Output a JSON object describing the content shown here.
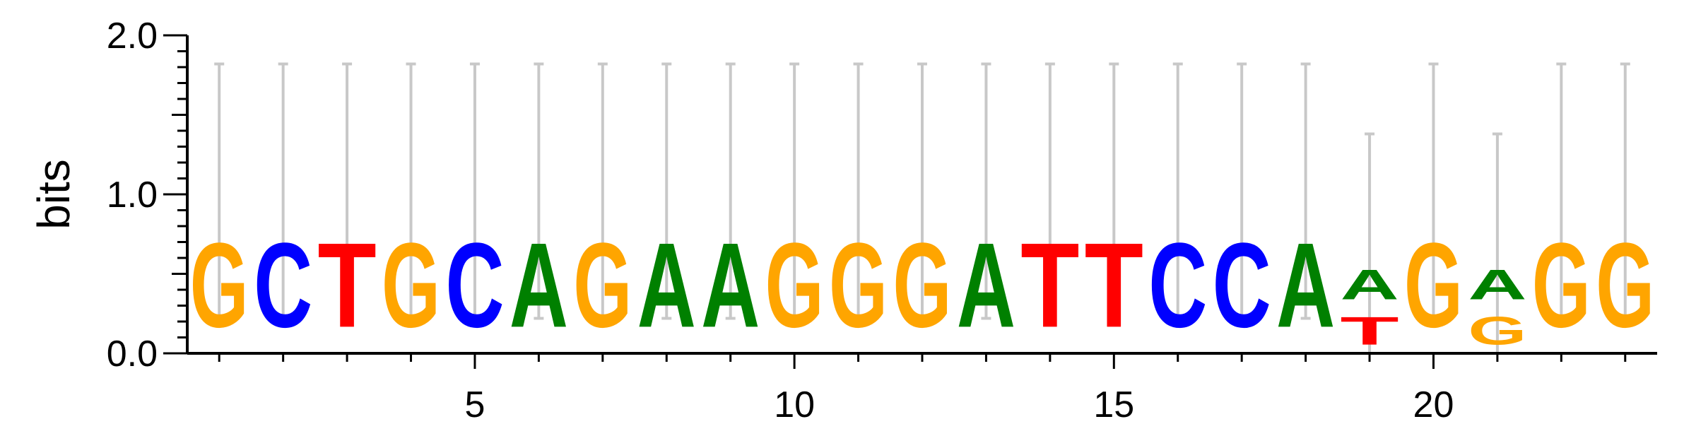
{
  "chart_data": {
    "type": "sequence-logo",
    "ylabel": "bits",
    "ylim": [
      0,
      2.0
    ],
    "yticks": [
      "0.0",
      "1.0",
      "2.0"
    ],
    "xticks": [
      5,
      10,
      15,
      20
    ],
    "colors": {
      "A": "#008000",
      "C": "#0000ff",
      "G": "#ffa500",
      "T": "#ff0000"
    },
    "positions": [
      {
        "pos": 1,
        "stack": [
          {
            "letter": "G",
            "bits": 0.85
          }
        ],
        "error": [
          0.22,
          1.82
        ]
      },
      {
        "pos": 2,
        "stack": [
          {
            "letter": "C",
            "bits": 0.85
          }
        ],
        "error": [
          0.22,
          1.82
        ]
      },
      {
        "pos": 3,
        "stack": [
          {
            "letter": "T",
            "bits": 0.85
          }
        ],
        "error": [
          0.22,
          1.82
        ]
      },
      {
        "pos": 4,
        "stack": [
          {
            "letter": "G",
            "bits": 0.85
          }
        ],
        "error": [
          0.22,
          1.82
        ]
      },
      {
        "pos": 5,
        "stack": [
          {
            "letter": "C",
            "bits": 0.85
          }
        ],
        "error": [
          0.22,
          1.82
        ]
      },
      {
        "pos": 6,
        "stack": [
          {
            "letter": "A",
            "bits": 0.85
          }
        ],
        "error": [
          0.22,
          1.82
        ]
      },
      {
        "pos": 7,
        "stack": [
          {
            "letter": "G",
            "bits": 0.85
          }
        ],
        "error": [
          0.22,
          1.82
        ]
      },
      {
        "pos": 8,
        "stack": [
          {
            "letter": "A",
            "bits": 0.85
          }
        ],
        "error": [
          0.22,
          1.82
        ]
      },
      {
        "pos": 9,
        "stack": [
          {
            "letter": "A",
            "bits": 0.85
          }
        ],
        "error": [
          0.22,
          1.82
        ]
      },
      {
        "pos": 10,
        "stack": [
          {
            "letter": "G",
            "bits": 0.85
          }
        ],
        "error": [
          0.22,
          1.82
        ]
      },
      {
        "pos": 11,
        "stack": [
          {
            "letter": "G",
            "bits": 0.85
          }
        ],
        "error": [
          0.22,
          1.82
        ]
      },
      {
        "pos": 12,
        "stack": [
          {
            "letter": "G",
            "bits": 0.85
          }
        ],
        "error": [
          0.22,
          1.82
        ]
      },
      {
        "pos": 13,
        "stack": [
          {
            "letter": "A",
            "bits": 0.85
          }
        ],
        "error": [
          0.22,
          1.82
        ]
      },
      {
        "pos": 14,
        "stack": [
          {
            "letter": "T",
            "bits": 0.85
          }
        ],
        "error": [
          0.22,
          1.82
        ]
      },
      {
        "pos": 15,
        "stack": [
          {
            "letter": "T",
            "bits": 0.85
          }
        ],
        "error": [
          0.22,
          1.82
        ]
      },
      {
        "pos": 16,
        "stack": [
          {
            "letter": "C",
            "bits": 0.85
          }
        ],
        "error": [
          0.22,
          1.82
        ]
      },
      {
        "pos": 17,
        "stack": [
          {
            "letter": "C",
            "bits": 0.85
          }
        ],
        "error": [
          0.22,
          1.82
        ]
      },
      {
        "pos": 18,
        "stack": [
          {
            "letter": "A",
            "bits": 0.85
          }
        ],
        "error": [
          0.22,
          1.82
        ]
      },
      {
        "pos": 19,
        "stack": [
          {
            "letter": "T",
            "bits": 0.28
          },
          {
            "letter": "A",
            "bits": 0.3
          }
        ],
        "error": [
          0.0,
          1.38
        ]
      },
      {
        "pos": 20,
        "stack": [
          {
            "letter": "G",
            "bits": 0.85
          }
        ],
        "error": [
          0.22,
          1.82
        ]
      },
      {
        "pos": 21,
        "stack": [
          {
            "letter": "G",
            "bits": 0.28
          },
          {
            "letter": "A",
            "bits": 0.3
          }
        ],
        "error": [
          0.0,
          1.38
        ]
      },
      {
        "pos": 22,
        "stack": [
          {
            "letter": "G",
            "bits": 0.85
          }
        ],
        "error": [
          0.22,
          1.82
        ]
      },
      {
        "pos": 23,
        "stack": [
          {
            "letter": "G",
            "bits": 0.85
          }
        ],
        "error": [
          0.22,
          1.82
        ]
      }
    ]
  }
}
